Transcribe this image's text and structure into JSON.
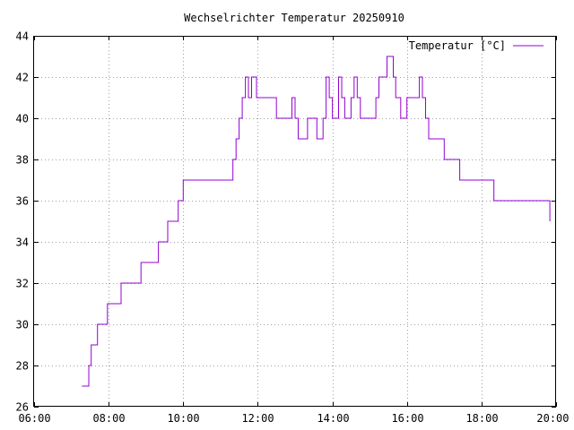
{
  "chart_data": {
    "type": "line",
    "title": "Wechselrichter Temperatur 20250910",
    "xlabel": "",
    "ylabel": "",
    "xlim": [
      "06:00",
      "20:00"
    ],
    "ylim": [
      26,
      44
    ],
    "x_ticks": [
      "06:00",
      "08:00",
      "10:00",
      "12:00",
      "14:00",
      "16:00",
      "18:00",
      "20:00"
    ],
    "y_ticks": [
      26,
      28,
      30,
      32,
      34,
      36,
      38,
      40,
      42,
      44
    ],
    "grid": true,
    "legend": "top-right",
    "series": [
      {
        "name": "Temperatur [°C]",
        "color": "#9400d3",
        "step": true,
        "x": [
          "07:17",
          "07:23",
          "07:28",
          "07:32",
          "07:42",
          "07:50",
          "07:58",
          "08:05",
          "08:10",
          "08:15",
          "08:20",
          "08:25",
          "08:30",
          "08:42",
          "08:52",
          "09:00",
          "09:07",
          "09:12",
          "09:20",
          "09:28",
          "09:35",
          "09:45",
          "09:52",
          "10:00",
          "10:05",
          "10:10",
          "10:15",
          "10:20",
          "10:25",
          "10:30",
          "10:40",
          "11:00",
          "11:20",
          "11:25",
          "11:30",
          "11:35",
          "11:40",
          "11:45",
          "11:50",
          "11:55",
          "11:58",
          "12:00",
          "12:05",
          "12:10",
          "12:15",
          "12:20",
          "12:25",
          "12:30",
          "12:35",
          "12:40",
          "12:45",
          "12:50",
          "12:55",
          "13:00",
          "13:05",
          "13:08",
          "13:15",
          "13:20",
          "13:30",
          "13:35",
          "13:40",
          "13:45",
          "13:50",
          "13:55",
          "14:00",
          "14:05",
          "14:10",
          "14:15",
          "14:20",
          "14:25",
          "14:30",
          "14:35",
          "14:40",
          "14:45",
          "14:50",
          "14:55",
          "15:00",
          "15:05",
          "15:10",
          "15:15",
          "15:20",
          "15:25",
          "15:28",
          "15:32",
          "15:38",
          "15:42",
          "15:50",
          "16:00",
          "16:10",
          "16:15",
          "16:20",
          "16:25",
          "16:30",
          "16:35",
          "16:40",
          "16:50",
          "16:55",
          "17:00",
          "17:10",
          "17:15",
          "17:25",
          "17:30",
          "17:40",
          "17:50",
          "18:00",
          "18:10",
          "18:20",
          "18:30",
          "18:40",
          "18:50",
          "19:00",
          "19:10",
          "19:20",
          "19:30",
          "19:40",
          "19:50"
        ],
        "values": [
          27,
          27,
          28,
          29,
          30,
          30,
          31,
          31,
          31,
          31,
          32,
          32,
          32,
          32,
          33,
          33,
          33,
          33,
          34,
          34,
          35,
          35,
          36,
          37,
          37,
          37,
          37,
          37,
          37,
          37,
          37,
          37,
          38,
          39,
          40,
          41,
          42,
          41,
          42,
          42,
          41,
          41,
          41,
          41,
          41,
          41,
          41,
          40,
          40,
          40,
          40,
          40,
          41,
          40,
          39,
          39,
          39,
          40,
          40,
          39,
          39,
          40,
          42,
          41,
          40,
          40,
          42,
          41,
          40,
          40,
          41,
          42,
          41,
          40,
          40,
          40,
          40,
          40,
          41,
          42,
          42,
          42,
          43,
          43,
          42,
          41,
          40,
          41,
          41,
          41,
          42,
          41,
          40,
          39,
          39,
          39,
          39,
          38,
          38,
          38,
          37,
          37,
          37,
          37,
          37,
          37,
          36,
          36,
          36,
          36,
          36,
          36,
          36,
          36,
          36,
          35
        ]
      }
    ]
  }
}
